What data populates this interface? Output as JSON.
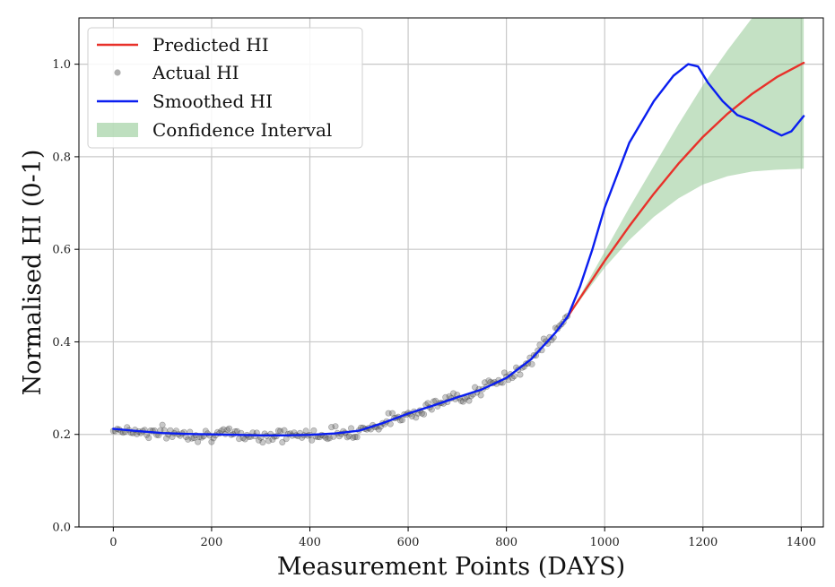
{
  "chart_data": {
    "type": "line",
    "xlabel": "Measurement Points (DAYS)",
    "ylabel": "Normalised HI (0-1)",
    "xlim": [
      -70,
      1445
    ],
    "ylim": [
      0.0,
      1.1
    ],
    "xticks": [
      0,
      200,
      400,
      600,
      800,
      1000,
      1200,
      1400
    ],
    "yticks": [
      0.0,
      0.2,
      0.4,
      0.6,
      0.8,
      1.0
    ],
    "xtick_labels": [
      "0",
      "200",
      "400",
      "600",
      "800",
      "1000",
      "1200",
      "1400"
    ],
    "ytick_labels": [
      "0.0",
      "0.2",
      "0.4",
      "0.6",
      "0.8",
      "1.0"
    ],
    "grid": true,
    "legend_position": "top-left",
    "legend": [
      {
        "label": "Predicted HI",
        "style": "line",
        "color": "#e8312a"
      },
      {
        "label": "Actual HI",
        "style": "marker",
        "color": "#9a9a9a"
      },
      {
        "label": "Smoothed HI",
        "style": "line",
        "color": "#0a1ef0"
      },
      {
        "label": "Confidence Interval",
        "style": "patch",
        "color": "#93c994"
      }
    ],
    "series": [
      {
        "name": "Smoothed HI",
        "color": "#0a1ef0",
        "points": [
          [
            0,
            0.212
          ],
          [
            50,
            0.207
          ],
          [
            100,
            0.203
          ],
          [
            150,
            0.201
          ],
          [
            200,
            0.2
          ],
          [
            250,
            0.199
          ],
          [
            300,
            0.198
          ],
          [
            350,
            0.198
          ],
          [
            400,
            0.199
          ],
          [
            450,
            0.202
          ],
          [
            500,
            0.208
          ],
          [
            550,
            0.225
          ],
          [
            600,
            0.245
          ],
          [
            650,
            0.262
          ],
          [
            700,
            0.28
          ],
          [
            750,
            0.297
          ],
          [
            800,
            0.322
          ],
          [
            850,
            0.362
          ],
          [
            900,
            0.42
          ],
          [
            925,
            0.455
          ],
          [
            950,
            0.52
          ],
          [
            975,
            0.6
          ],
          [
            1000,
            0.69
          ],
          [
            1050,
            0.83
          ],
          [
            1100,
            0.92
          ],
          [
            1140,
            0.975
          ],
          [
            1170,
            1.0
          ],
          [
            1190,
            0.995
          ],
          [
            1210,
            0.96
          ],
          [
            1240,
            0.92
          ],
          [
            1270,
            0.89
          ],
          [
            1300,
            0.878
          ],
          [
            1330,
            0.862
          ],
          [
            1360,
            0.846
          ],
          [
            1380,
            0.855
          ],
          [
            1405,
            0.888
          ]
        ]
      },
      {
        "name": "Predicted HI",
        "color": "#e8312a",
        "points": [
          [
            925,
            0.455
          ],
          [
            950,
            0.495
          ],
          [
            1000,
            0.575
          ],
          [
            1050,
            0.65
          ],
          [
            1100,
            0.72
          ],
          [
            1150,
            0.785
          ],
          [
            1200,
            0.843
          ],
          [
            1250,
            0.893
          ],
          [
            1300,
            0.936
          ],
          [
            1350,
            0.972
          ],
          [
            1405,
            1.003
          ]
        ]
      }
    ],
    "confidence_interval": {
      "name": "Confidence Interval",
      "color": "#93c994",
      "x": [
        925,
        950,
        1000,
        1050,
        1100,
        1150,
        1200,
        1250,
        1300,
        1350,
        1405
      ],
      "lower": [
        0.455,
        0.49,
        0.56,
        0.62,
        0.67,
        0.71,
        0.74,
        0.758,
        0.768,
        0.772,
        0.774
      ],
      "upper": [
        0.455,
        0.5,
        0.595,
        0.69,
        0.78,
        0.87,
        0.955,
        1.03,
        1.1,
        1.1,
        1.1
      ]
    },
    "actual_hi_trend": {
      "name": "Actual HI",
      "color": "#555555",
      "x_range": [
        0,
        925
      ],
      "step": 4
    }
  }
}
